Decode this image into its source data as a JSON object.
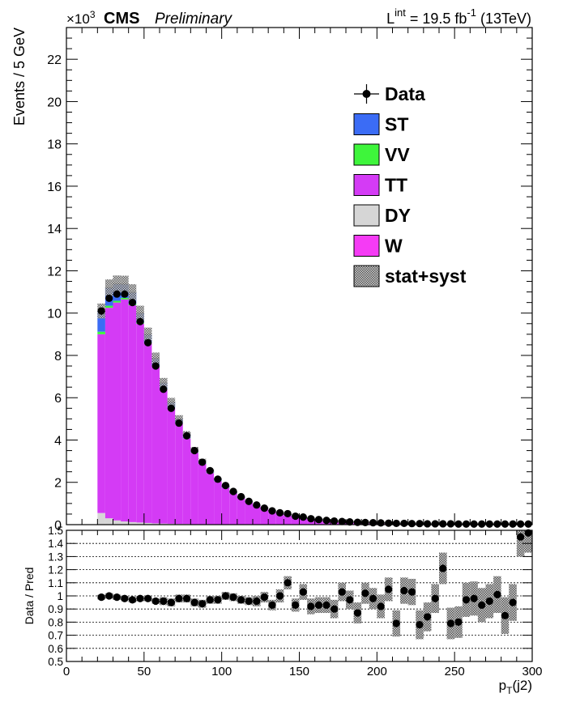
{
  "header": {
    "multiplier_base": "×10",
    "multiplier_exp": "3",
    "experiment": "CMS",
    "status": "Preliminary",
    "lumi_L": "L",
    "lumi_int": "int",
    "lumi_value": " = 19.5 fb",
    "lumi_exp": "-1",
    "lumi_energy": " (13TeV)"
  },
  "colors": {
    "ST": "#3b6cf5",
    "VV": "#3ef53b",
    "TT": "#d43bf5",
    "DY": "#d6d6d6",
    "W": "#f53bf5",
    "data": "#000000",
    "band": "#909090"
  },
  "chart_data": [
    {
      "type": "bar",
      "stacked": true,
      "title": "CMS Preliminary",
      "xlabel": "p_T(j2)",
      "ylabel": "Events / 5 GeV",
      "y_multiplier": "×10^3",
      "xlim": [
        0,
        300
      ],
      "ylim": [
        0,
        23.5
      ],
      "y_ticks": [
        0,
        2,
        4,
        6,
        8,
        10,
        12,
        14,
        16,
        18,
        20,
        22
      ],
      "x_ticks": [
        0,
        50,
        100,
        150,
        200,
        250,
        300
      ],
      "bin_width": 5,
      "x": [
        22.5,
        27.5,
        32.5,
        37.5,
        42.5,
        47.5,
        52.5,
        57.5,
        62.5,
        67.5,
        72.5,
        77.5,
        82.5,
        87.5,
        92.5,
        97.5,
        102.5,
        107.5,
        112.5,
        117.5,
        122.5,
        127.5,
        132.5,
        137.5,
        142.5,
        147.5,
        152.5,
        157.5,
        162.5,
        167.5,
        172.5,
        177.5,
        182.5,
        187.5,
        192.5,
        197.5,
        202.5,
        207.5,
        212.5,
        217.5,
        222.5,
        227.5,
        232.5,
        237.5,
        242.5,
        247.5,
        252.5,
        257.5,
        262.5,
        267.5,
        272.5,
        277.5,
        282.5,
        287.5,
        292.5,
        297.5
      ],
      "legend": {
        "position": "top-right",
        "entries": [
          "Data",
          "ST",
          "VV",
          "TT",
          "DY",
          "W",
          "stat+syst"
        ]
      },
      "series": [
        {
          "name": "DY",
          "values": [
            0.55,
            0.3,
            0.2,
            0.15,
            0.12,
            0.1,
            0.08,
            0.06,
            0.05,
            0.04,
            0.03,
            0.03,
            0.02,
            0.02,
            0.02,
            0.01,
            0.01,
            0.01,
            0.01,
            0.01,
            0.01,
            0.01,
            0.01,
            0.01,
            0.01,
            0.01,
            0.01,
            0.01,
            0.01,
            0.01,
            0.01,
            0.01,
            0.01,
            0.01,
            0.01,
            0.01,
            0.01,
            0.01,
            0.01,
            0.01,
            0.01,
            0.01,
            0.01,
            0.01,
            0.01,
            0.01,
            0.01,
            0.01,
            0.01,
            0.01,
            0.01,
            0.01,
            0.01,
            0.01,
            0.01,
            0.01
          ]
        },
        {
          "name": "TT",
          "values": [
            8.45,
            9.95,
            10.3,
            10.5,
            10.25,
            9.4,
            8.5,
            7.45,
            6.35,
            5.5,
            4.75,
            4.05,
            3.38,
            2.86,
            2.42,
            2.05,
            1.73,
            1.47,
            1.24,
            1.04,
            0.88,
            0.74,
            0.62,
            0.52,
            0.44,
            0.37,
            0.31,
            0.26,
            0.22,
            0.18,
            0.15,
            0.13,
            0.11,
            0.09,
            0.08,
            0.07,
            0.06,
            0.05,
            0.05,
            0.04,
            0.04,
            0.03,
            0.03,
            0.03,
            0.02,
            0.02,
            0.02,
            0.02,
            0.02,
            0.02,
            0.01,
            0.01,
            0.01,
            0.01,
            0.01,
            0.01
          ]
        },
        {
          "name": "VV",
          "values": [
            0.12,
            0.1,
            0.08,
            0.07,
            0.06,
            0.05,
            0.04,
            0.03,
            0.03,
            0.02,
            0.02,
            0.02,
            0.01,
            0.01,
            0.01,
            0.01,
            0.01,
            0.01,
            0.01,
            0.01,
            0,
            0,
            0,
            0,
            0,
            0,
            0,
            0,
            0,
            0,
            0,
            0,
            0,
            0,
            0,
            0,
            0,
            0,
            0,
            0,
            0,
            0,
            0,
            0,
            0,
            0,
            0,
            0,
            0,
            0,
            0,
            0,
            0,
            0,
            0,
            0
          ]
        },
        {
          "name": "ST",
          "values": [
            0.98,
            0.85,
            0.8,
            0.65,
            0.55,
            0.45,
            0.38,
            0.32,
            0.27,
            0.23,
            0.2,
            0.17,
            0.14,
            0.12,
            0.1,
            0.09,
            0.08,
            0.07,
            0.06,
            0.05,
            0.04,
            0.04,
            0.03,
            0.03,
            0.02,
            0.02,
            0.02,
            0.02,
            0.02,
            0.01,
            0.01,
            0.01,
            0.01,
            0.01,
            0.01,
            0.01,
            0.01,
            0.01,
            0.01,
            0.01,
            0.01,
            0.01,
            0.01,
            0.01,
            0.01,
            0.01,
            0.01,
            0.01,
            0.01,
            0.01,
            0.01,
            0.01,
            0.01,
            0.01,
            0.01,
            0.01
          ]
        },
        {
          "name": "Data",
          "values": [
            10.1,
            10.7,
            10.9,
            10.9,
            10.5,
            9.6,
            8.6,
            7.5,
            6.4,
            5.5,
            4.8,
            4.2,
            3.5,
            2.95,
            2.55,
            2.15,
            1.85,
            1.57,
            1.32,
            1.1,
            0.93,
            0.78,
            0.65,
            0.56,
            0.52,
            0.4,
            0.36,
            0.28,
            0.24,
            0.2,
            0.17,
            0.15,
            0.13,
            0.11,
            0.1,
            0.09,
            0.08,
            0.07,
            0.06,
            0.06,
            0.05,
            0.05,
            0.04,
            0.04,
            0.04,
            0.04,
            0.03,
            0.03,
            0.03,
            0.03,
            0.03,
            0.03,
            0.03,
            0.03,
            0.03,
            0.03
          ]
        }
      ]
    },
    {
      "type": "scatter",
      "ylabel": "Data / Pred",
      "xlabel": "p_T(j2)",
      "xlim": [
        0,
        300
      ],
      "ylim": [
        0.5,
        1.5
      ],
      "y_ticks": [
        0.5,
        0.6,
        0.7,
        0.8,
        0.9,
        1,
        1.1,
        1.2,
        1.3,
        1.4,
        1.5
      ],
      "x_ticks": [
        0,
        50,
        100,
        150,
        200,
        250,
        300
      ],
      "x": [
        22.5,
        27.5,
        32.5,
        37.5,
        42.5,
        47.5,
        52.5,
        57.5,
        62.5,
        67.5,
        72.5,
        77.5,
        82.5,
        87.5,
        92.5,
        97.5,
        102.5,
        107.5,
        112.5,
        117.5,
        122.5,
        127.5,
        132.5,
        137.5,
        142.5,
        147.5,
        152.5,
        157.5,
        162.5,
        167.5,
        172.5,
        177.5,
        182.5,
        187.5,
        192.5,
        197.5,
        202.5,
        207.5,
        212.5,
        217.5,
        222.5,
        227.5,
        232.5,
        237.5,
        242.5,
        247.5,
        252.5,
        257.5,
        262.5,
        267.5,
        272.5,
        277.5,
        282.5,
        287.5,
        292.5,
        297.5
      ],
      "ratio": [
        0.99,
        1.0,
        0.99,
        0.98,
        0.97,
        0.98,
        0.98,
        0.96,
        0.96,
        0.95,
        0.98,
        0.98,
        0.95,
        0.94,
        0.97,
        0.97,
        1.0,
        0.99,
        0.97,
        0.96,
        0.96,
        0.99,
        0.93,
        1.0,
        1.1,
        0.93,
        1.03,
        0.92,
        0.93,
        0.93,
        0.9,
        1.03,
        0.97,
        0.87,
        1.02,
        0.98,
        0.92,
        1.05,
        0.79,
        1.04,
        1.03,
        0.78,
        0.84,
        0.98,
        1.21,
        0.79,
        0.8,
        0.97,
        0.98,
        0.93,
        0.96,
        1.01,
        0.85,
        0.95,
        1.45,
        1.48
      ],
      "band_halfwidth": [
        0.02,
        0.02,
        0.02,
        0.02,
        0.02,
        0.02,
        0.02,
        0.02,
        0.03,
        0.03,
        0.03,
        0.03,
        0.03,
        0.03,
        0.03,
        0.03,
        0.03,
        0.03,
        0.03,
        0.03,
        0.04,
        0.04,
        0.04,
        0.05,
        0.05,
        0.05,
        0.06,
        0.06,
        0.06,
        0.06,
        0.07,
        0.07,
        0.07,
        0.08,
        0.08,
        0.08,
        0.09,
        0.09,
        0.1,
        0.1,
        0.1,
        0.11,
        0.11,
        0.11,
        0.12,
        0.12,
        0.12,
        0.13,
        0.13,
        0.13,
        0.13,
        0.14,
        0.14,
        0.14,
        0.15,
        0.15
      ]
    }
  ]
}
